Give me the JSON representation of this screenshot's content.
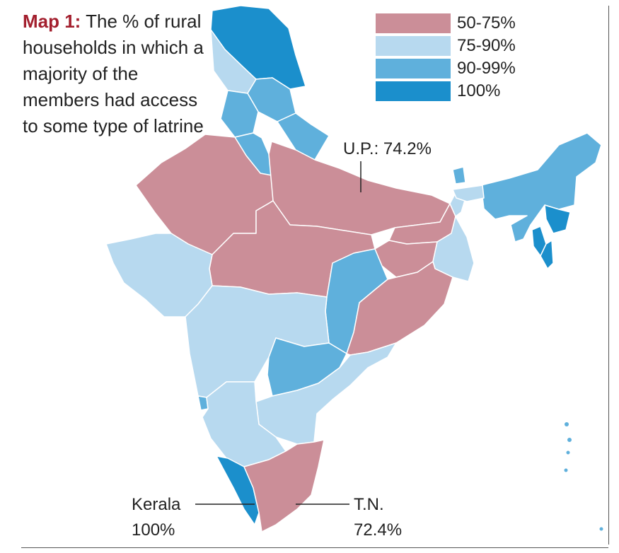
{
  "title": {
    "lead": "Map 1:",
    "text": "The % of rural households in which a majority of the members had access to some type of latrine"
  },
  "legend": [
    {
      "label": "50-75%",
      "color": "#cb8e98"
    },
    {
      "label": "75-90%",
      "color": "#b7d9ef"
    },
    {
      "label": "90-99%",
      "color": "#5fb0dc"
    },
    {
      "label": "100%",
      "color": "#1b8fcc"
    }
  ],
  "callouts": {
    "up": "U.P.: 74.2%",
    "kerala_name": "Kerala",
    "kerala_value": "100%",
    "tn_name": "T.N.",
    "tn_value": "72.4%"
  },
  "colors": {
    "border": "#ffffff",
    "accent": "#a31f2e"
  }
}
